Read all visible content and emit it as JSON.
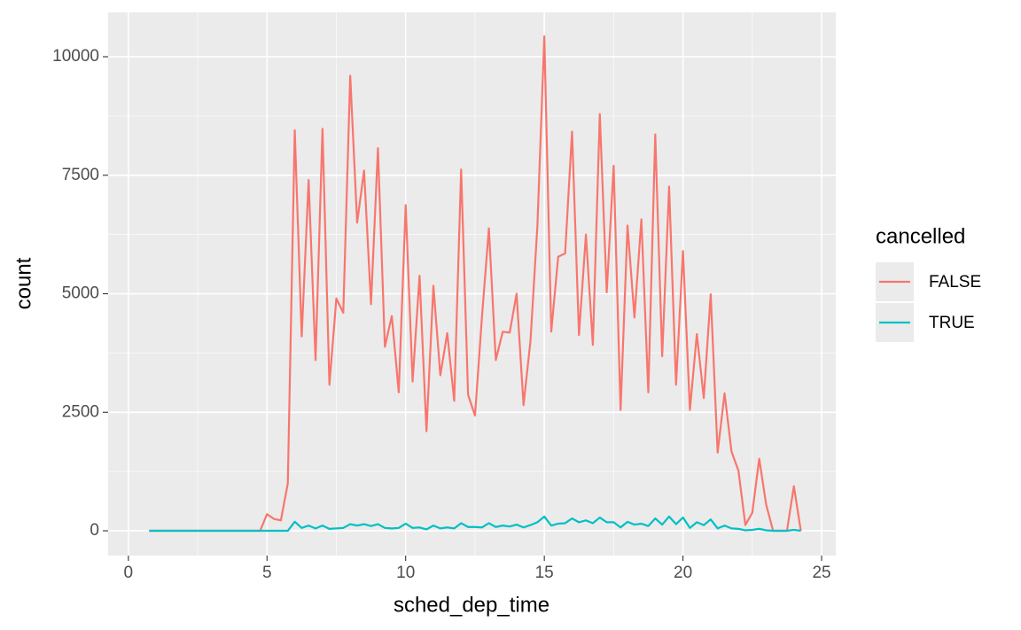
{
  "chart_data": {
    "type": "line",
    "x_label": "sched_dep_time",
    "y_label": "count",
    "legend_title": "cancelled",
    "x": [
      0.75,
      1,
      1.25,
      1.5,
      1.75,
      2,
      2.25,
      2.5,
      2.75,
      3,
      3.25,
      3.5,
      3.75,
      4,
      4.25,
      4.5,
      4.75,
      5,
      5.25,
      5.5,
      5.75,
      6,
      6.25,
      6.5,
      6.75,
      7,
      7.25,
      7.5,
      7.75,
      8,
      8.25,
      8.5,
      8.75,
      9,
      9.25,
      9.5,
      9.75,
      10,
      10.25,
      10.5,
      10.75,
      11,
      11.25,
      11.5,
      11.75,
      12,
      12.25,
      12.5,
      12.75,
      13,
      13.25,
      13.5,
      13.75,
      14,
      14.25,
      14.5,
      14.75,
      15,
      15.25,
      15.5,
      15.75,
      16,
      16.25,
      16.5,
      16.75,
      17,
      17.25,
      17.5,
      17.75,
      18,
      18.25,
      18.5,
      18.75,
      19,
      19.25,
      19.5,
      19.75,
      20,
      20.25,
      20.5,
      20.75,
      21,
      21.25,
      21.5,
      21.75,
      22,
      22.25,
      22.5,
      22.75,
      23,
      23.25,
      23.5,
      23.75,
      24,
      24.25
    ],
    "series": [
      {
        "name": "FALSE",
        "color": "#f8766d",
        "values": [
          0,
          0,
          0,
          0,
          0,
          0,
          0,
          0,
          0,
          0,
          0,
          0,
          0,
          0,
          0,
          0,
          0,
          350,
          250,
          220,
          1000,
          8450,
          4100,
          7400,
          3600,
          8480,
          3080,
          4900,
          4600,
          9600,
          6500,
          7600,
          4780,
          8070,
          3880,
          4530,
          2920,
          6870,
          3150,
          5380,
          2100,
          5170,
          3280,
          4170,
          2740,
          7620,
          2870,
          2430,
          4500,
          6380,
          3600,
          4200,
          4180,
          5000,
          2650,
          4000,
          6430,
          10430,
          4200,
          5780,
          5850,
          8420,
          4130,
          6250,
          3920,
          8790,
          5030,
          7700,
          2550,
          6440,
          4500,
          6570,
          2920,
          8360,
          3680,
          7260,
          3080,
          5900,
          2550,
          4150,
          2800,
          4990,
          1650,
          2900,
          1670,
          1270,
          120,
          380,
          1520,
          550,
          0,
          0,
          0,
          940,
          0
        ]
      },
      {
        "name": "TRUE",
        "color": "#00bfc4",
        "values": [
          0,
          0,
          0,
          0,
          0,
          0,
          0,
          0,
          0,
          0,
          0,
          0,
          0,
          0,
          0,
          0,
          0,
          0,
          0,
          0,
          0,
          190,
          60,
          110,
          50,
          110,
          40,
          50,
          60,
          140,
          110,
          140,
          100,
          140,
          60,
          50,
          60,
          150,
          60,
          70,
          30,
          110,
          50,
          70,
          50,
          160,
          80,
          80,
          70,
          160,
          80,
          110,
          90,
          130,
          70,
          120,
          180,
          300,
          110,
          150,
          160,
          260,
          180,
          220,
          160,
          280,
          180,
          180,
          70,
          190,
          130,
          150,
          100,
          260,
          130,
          300,
          140,
          280,
          60,
          180,
          120,
          240,
          50,
          110,
          50,
          40,
          10,
          20,
          40,
          10,
          0,
          0,
          0,
          20,
          0
        ]
      }
    ],
    "xlim": [
      -0.73,
      25.51
    ],
    "ylim": [
      -523,
      10935
    ],
    "xticks": [
      0,
      5,
      10,
      15,
      20,
      25
    ],
    "yticks": [
      0,
      2500,
      5000,
      7500,
      10000
    ],
    "grid": true
  }
}
